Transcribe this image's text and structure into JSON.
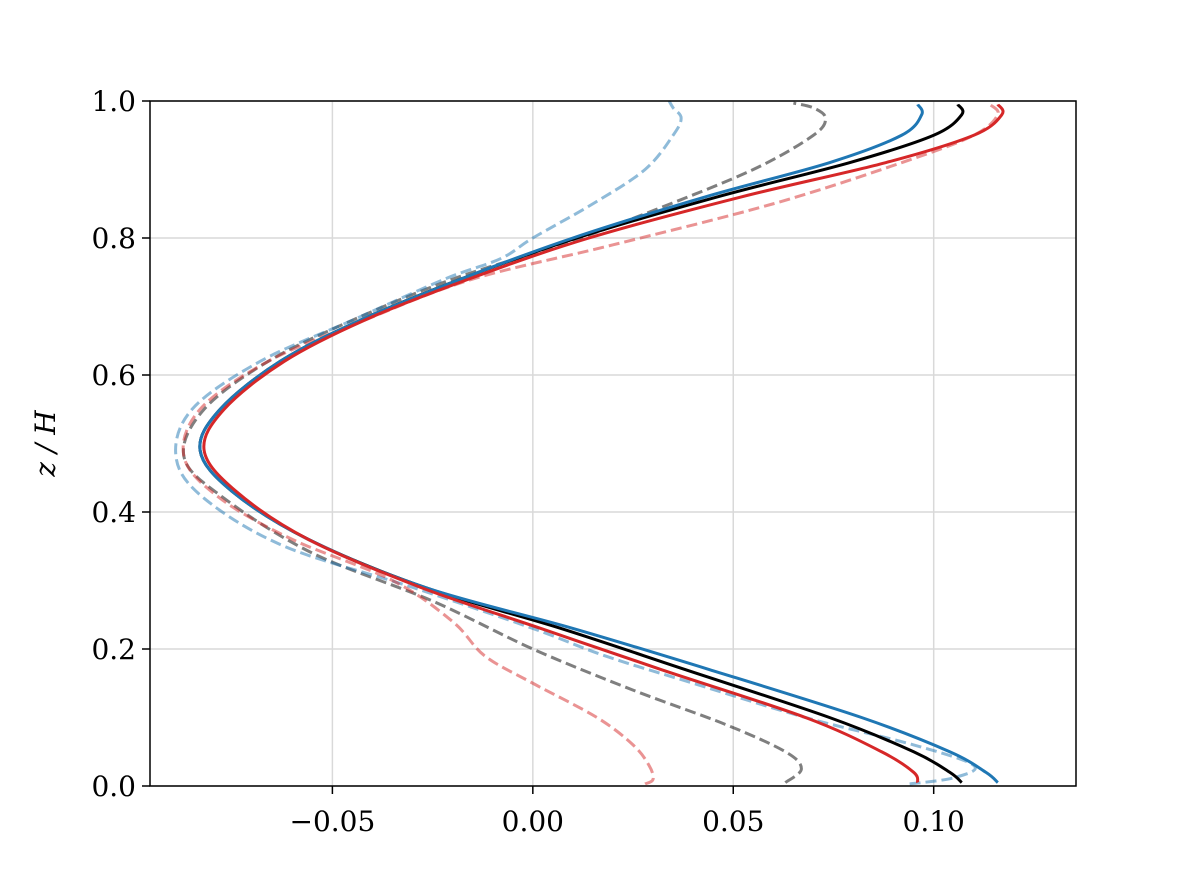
{
  "chart_data": {
    "type": "line",
    "title": "",
    "xlabel": "",
    "ylabel": "z / H",
    "xlim": [
      -0.0955,
      0.1355
    ],
    "ylim": [
      0.0,
      1.0
    ],
    "xticks": [
      -0.05,
      0.0,
      0.05,
      0.1
    ],
    "xtick_labels": [
      "−0.05",
      "0.00",
      "0.05",
      "0.10"
    ],
    "yticks": [
      0.0,
      0.2,
      0.4,
      0.6,
      0.8,
      1.0
    ],
    "ytick_labels": [
      "0.0",
      "0.2",
      "0.4",
      "0.6",
      "0.8",
      "1.0"
    ],
    "grid": true,
    "legend": "none",
    "series": [
      {
        "color": "#000000",
        "dash": "solid",
        "opacity": 1.0,
        "points": [
          [
            0.107,
            0.005
          ],
          [
            0.104,
            0.02
          ],
          [
            0.095,
            0.05
          ],
          [
            0.074,
            0.1
          ],
          [
            0.038,
            0.17
          ],
          [
            0.007,
            0.23
          ],
          [
            -0.027,
            0.29
          ],
          [
            -0.056,
            0.36
          ],
          [
            -0.075,
            0.43
          ],
          [
            -0.083,
            0.49
          ],
          [
            -0.078,
            0.55
          ],
          [
            -0.063,
            0.62
          ],
          [
            -0.043,
            0.68
          ],
          [
            -0.018,
            0.74
          ],
          [
            0.011,
            0.8
          ],
          [
            0.046,
            0.86
          ],
          [
            0.079,
            0.91
          ],
          [
            0.1,
            0.95
          ],
          [
            0.107,
            0.98
          ],
          [
            0.106,
            0.995
          ]
        ]
      },
      {
        "color": "#1f77b4",
        "dash": "solid",
        "opacity": 1.0,
        "points": [
          [
            0.116,
            0.005
          ],
          [
            0.113,
            0.02
          ],
          [
            0.104,
            0.05
          ],
          [
            0.082,
            0.1
          ],
          [
            0.044,
            0.17
          ],
          [
            0.01,
            0.23
          ],
          [
            -0.027,
            0.29
          ],
          [
            -0.056,
            0.36
          ],
          [
            -0.075,
            0.43
          ],
          [
            -0.083,
            0.49
          ],
          [
            -0.078,
            0.55
          ],
          [
            -0.063,
            0.62
          ],
          [
            -0.043,
            0.68
          ],
          [
            -0.018,
            0.74
          ],
          [
            0.01,
            0.8
          ],
          [
            0.043,
            0.86
          ],
          [
            0.074,
            0.91
          ],
          [
            0.092,
            0.95
          ],
          [
            0.097,
            0.98
          ],
          [
            0.096,
            0.995
          ]
        ]
      },
      {
        "color": "#d62728",
        "dash": "solid",
        "opacity": 1.0,
        "points": [
          [
            0.096,
            0.005
          ],
          [
            0.095,
            0.02
          ],
          [
            0.087,
            0.05
          ],
          [
            0.068,
            0.1
          ],
          [
            0.032,
            0.17
          ],
          [
            0.002,
            0.23
          ],
          [
            -0.028,
            0.29
          ],
          [
            -0.056,
            0.36
          ],
          [
            -0.074,
            0.43
          ],
          [
            -0.082,
            0.49
          ],
          [
            -0.077,
            0.55
          ],
          [
            -0.062,
            0.62
          ],
          [
            -0.042,
            0.68
          ],
          [
            -0.016,
            0.74
          ],
          [
            0.014,
            0.8
          ],
          [
            0.052,
            0.86
          ],
          [
            0.088,
            0.91
          ],
          [
            0.11,
            0.95
          ],
          [
            0.117,
            0.98
          ],
          [
            0.116,
            0.995
          ]
        ]
      },
      {
        "color": "#000000",
        "dash": "dashed",
        "opacity": 0.5,
        "points": [
          [
            0.063,
            0.005
          ],
          [
            0.067,
            0.025
          ],
          [
            0.063,
            0.05
          ],
          [
            0.048,
            0.09
          ],
          [
            0.025,
            0.14
          ],
          [
            0.0,
            0.2
          ],
          [
            -0.025,
            0.27
          ],
          [
            -0.055,
            0.34
          ],
          [
            -0.077,
            0.42
          ],
          [
            -0.087,
            0.48
          ],
          [
            -0.082,
            0.55
          ],
          [
            -0.066,
            0.62
          ],
          [
            -0.045,
            0.68
          ],
          [
            -0.02,
            0.74
          ],
          [
            0.007,
            0.79
          ],
          [
            0.03,
            0.84
          ],
          [
            0.055,
            0.9
          ],
          [
            0.07,
            0.95
          ],
          [
            0.073,
            0.975
          ],
          [
            0.07,
            0.99
          ],
          [
            0.065,
            0.997
          ]
        ]
      },
      {
        "color": "#1f77b4",
        "dash": "dashed",
        "opacity": 0.5,
        "points": [
          [
            0.094,
            0.003
          ],
          [
            0.105,
            0.012
          ],
          [
            0.11,
            0.03
          ],
          [
            0.095,
            0.06
          ],
          [
            0.068,
            0.1
          ],
          [
            0.04,
            0.15
          ],
          [
            0.018,
            0.19
          ],
          [
            0.0,
            0.23
          ],
          [
            -0.03,
            0.29
          ],
          [
            -0.062,
            0.35
          ],
          [
            -0.082,
            0.42
          ],
          [
            -0.089,
            0.48
          ],
          [
            -0.085,
            0.55
          ],
          [
            -0.068,
            0.62
          ],
          [
            -0.045,
            0.68
          ],
          [
            -0.022,
            0.74
          ],
          [
            -0.008,
            0.77
          ],
          [
            0.0,
            0.8
          ],
          [
            0.015,
            0.85
          ],
          [
            0.028,
            0.9
          ],
          [
            0.035,
            0.95
          ],
          [
            0.037,
            0.975
          ],
          [
            0.035,
            0.99
          ],
          [
            0.034,
            1.0
          ]
        ]
      },
      {
        "color": "#d62728",
        "dash": "dashed",
        "opacity": 0.5,
        "points": [
          [
            0.028,
            0.003
          ],
          [
            0.03,
            0.01
          ],
          [
            0.029,
            0.03
          ],
          [
            0.025,
            0.06
          ],
          [
            0.016,
            0.1
          ],
          [
            0.0,
            0.15
          ],
          [
            -0.012,
            0.19
          ],
          [
            -0.02,
            0.24
          ],
          [
            -0.035,
            0.3
          ],
          [
            -0.06,
            0.36
          ],
          [
            -0.078,
            0.42
          ],
          [
            -0.087,
            0.48
          ],
          [
            -0.083,
            0.55
          ],
          [
            -0.066,
            0.62
          ],
          [
            -0.042,
            0.68
          ],
          [
            -0.015,
            0.74
          ],
          [
            0.02,
            0.79
          ],
          [
            0.06,
            0.85
          ],
          [
            0.092,
            0.91
          ],
          [
            0.11,
            0.95
          ],
          [
            0.116,
            0.98
          ],
          [
            0.114,
            0.995
          ]
        ]
      }
    ]
  }
}
